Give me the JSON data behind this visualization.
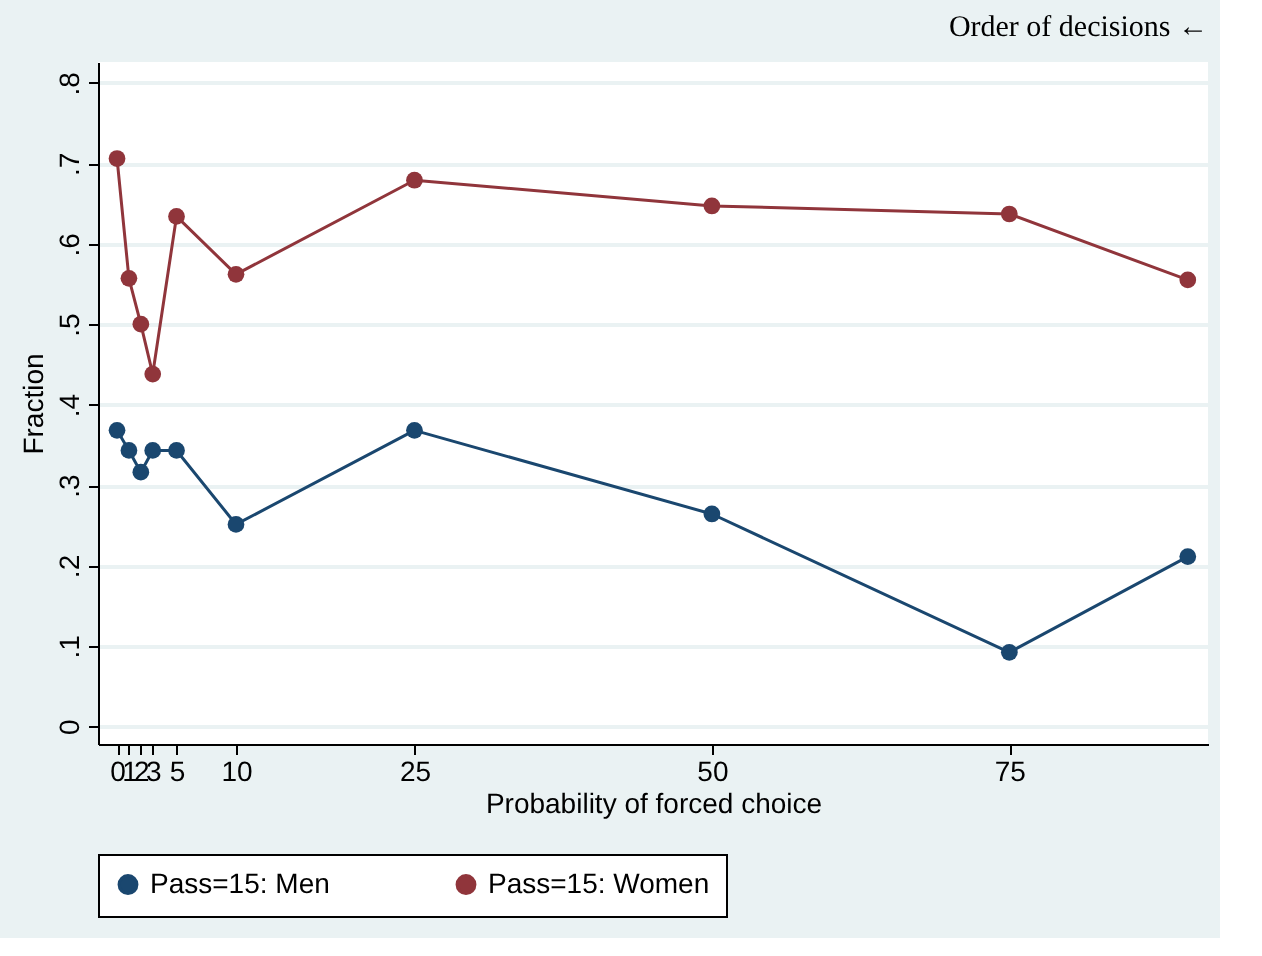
{
  "chart_data": {
    "type": "line",
    "xlabel": "Probability of forced choice",
    "ylabel": "Fraction",
    "annotations": [
      "Order of decisions ←"
    ],
    "x": [
      0,
      1,
      2,
      3,
      5,
      10,
      25,
      50,
      75,
      90
    ],
    "series": [
      {
        "name": "Pass=15: Men",
        "color": "#1a476f",
        "values": [
          0.368,
          0.343,
          0.316,
          0.343,
          0.343,
          0.251,
          0.368,
          0.264,
          0.092,
          0.211
        ]
      },
      {
        "name": "Pass=15: Women",
        "color": "#90353b",
        "values": [
          0.706,
          0.557,
          0.5,
          0.438,
          0.634,
          0.562,
          0.679,
          0.647,
          0.637,
          0.555
        ]
      }
    ],
    "xlim": [
      -1.6,
      91.7
    ],
    "xticks": [
      0,
      1,
      2,
      3,
      5,
      10,
      25,
      50,
      75
    ],
    "ylim": [
      -0.022,
      0.826
    ],
    "yticks": [
      {
        "value": 0,
        "label": "0"
      },
      {
        "value": 0.1,
        "label": ".1"
      },
      {
        "value": 0.2,
        "label": ".2"
      },
      {
        "value": 0.3,
        "label": ".3"
      },
      {
        "value": 0.4,
        "label": ".4"
      },
      {
        "value": 0.5,
        "label": ".5"
      },
      {
        "value": 0.6,
        "label": ".6"
      },
      {
        "value": 0.7,
        "label": ".7"
      },
      {
        "value": 0.8,
        "label": ".8"
      }
    ],
    "grid": "y",
    "legend": "bottom",
    "marker": "circle",
    "line_style": "solid"
  }
}
